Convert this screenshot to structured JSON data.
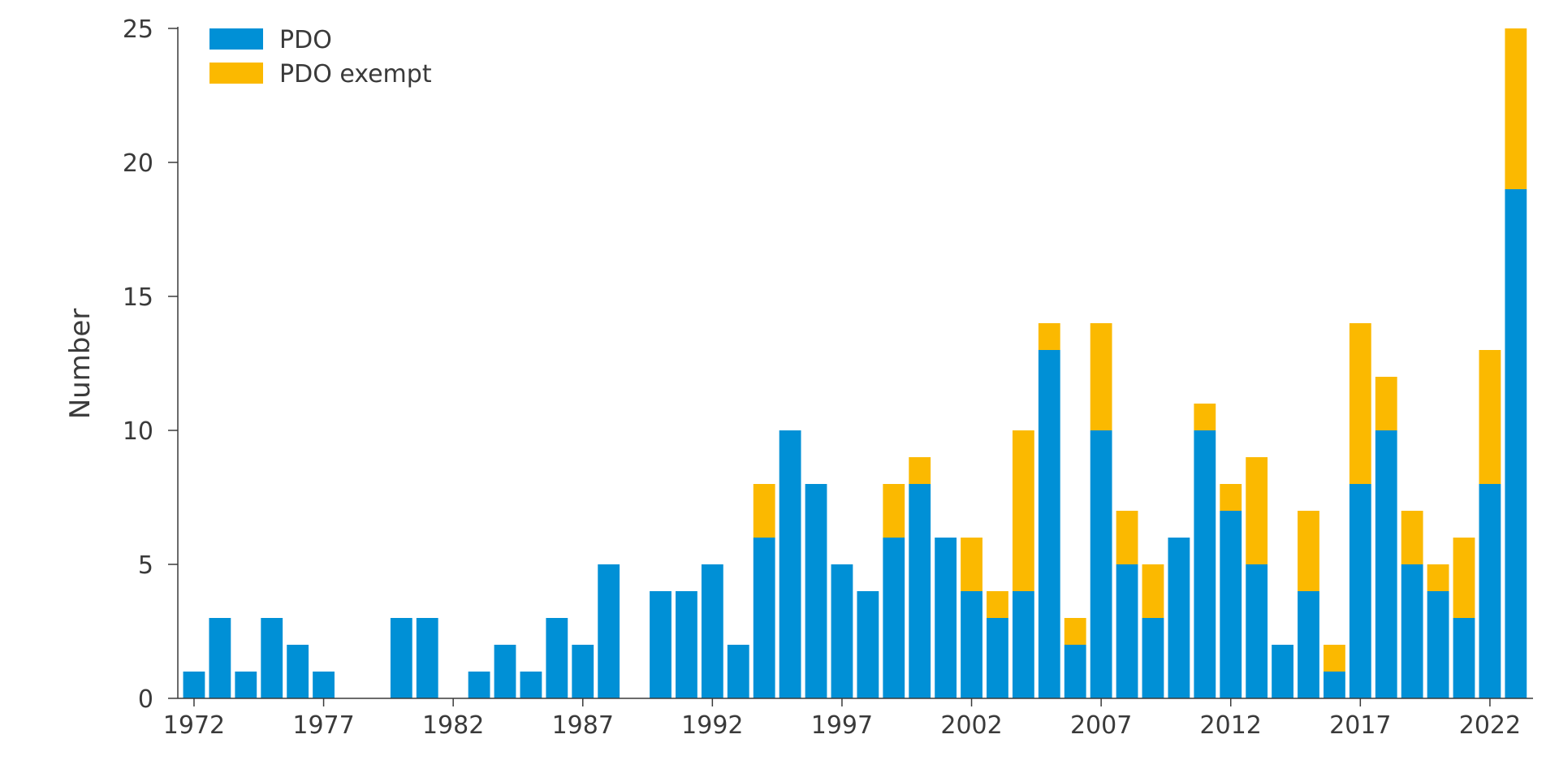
{
  "chart_data": {
    "type": "bar",
    "stacked": true,
    "title": "",
    "xlabel": "",
    "ylabel": "Number",
    "ylim": [
      0,
      25
    ],
    "yticks": [
      0,
      5,
      10,
      15,
      20,
      25
    ],
    "xtick_labels": [
      "1972",
      "1977",
      "1982",
      "1987",
      "1992",
      "1997",
      "2002",
      "2007",
      "2012",
      "2017",
      "2022"
    ],
    "grid": false,
    "legend_position": "top-left",
    "categories": [
      1972,
      1973,
      1974,
      1975,
      1976,
      1977,
      1978,
      1979,
      1980,
      1981,
      1982,
      1983,
      1984,
      1985,
      1986,
      1987,
      1988,
      1989,
      1990,
      1991,
      1992,
      1993,
      1994,
      1995,
      1996,
      1997,
      1998,
      1999,
      2000,
      2001,
      2002,
      2003,
      2004,
      2005,
      2006,
      2007,
      2008,
      2009,
      2010,
      2011,
      2012,
      2013,
      2014,
      2015,
      2016,
      2017,
      2018,
      2019,
      2020,
      2021,
      2022,
      2023
    ],
    "series": [
      {
        "name": "PDO",
        "color": "#0090d6",
        "values": [
          1,
          3,
          1,
          3,
          2,
          1,
          0,
          0,
          3,
          3,
          0,
          1,
          2,
          1,
          3,
          2,
          5,
          0,
          4,
          4,
          5,
          2,
          6,
          10,
          8,
          5,
          4,
          6,
          8,
          6,
          4,
          3,
          4,
          13,
          2,
          10,
          5,
          3,
          6,
          10,
          7,
          5,
          2,
          4,
          1,
          8,
          10,
          5,
          4,
          3,
          8,
          19
        ]
      },
      {
        "name": "PDO exempt",
        "color": "#fbb900",
        "values": [
          0,
          0,
          0,
          0,
          0,
          0,
          0,
          0,
          0,
          0,
          0,
          0,
          0,
          0,
          0,
          0,
          0,
          0,
          0,
          0,
          0,
          0,
          2,
          0,
          0,
          0,
          0,
          2,
          1,
          0,
          2,
          1,
          6,
          1,
          1,
          4,
          2,
          2,
          0,
          1,
          1,
          4,
          0,
          3,
          1,
          6,
          2,
          2,
          1,
          3,
          5,
          6
        ]
      }
    ]
  }
}
